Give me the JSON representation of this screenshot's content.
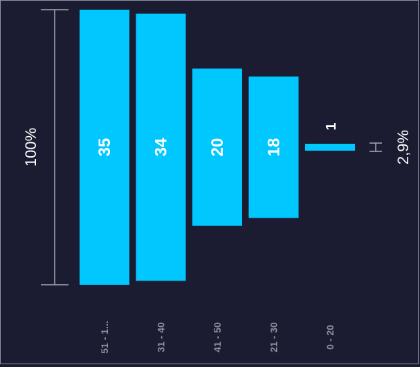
{
  "chart_data": {
    "type": "bar",
    "orientation": "horizontal-funnel",
    "title": "",
    "xlabel": "",
    "ylabel": "",
    "categories": [
      "51 - 1...",
      "31 - 40",
      "41 - 50",
      "21 - 30",
      "0 - 20"
    ],
    "values": [
      35,
      34,
      20,
      18,
      1
    ],
    "value_labels": [
      "35",
      "34",
      "20",
      "18",
      "1"
    ],
    "max_measure_label": "100%",
    "min_measure_label": "2,9%",
    "ylim": [
      0,
      35
    ],
    "grid": false,
    "legend": "none",
    "colors": {
      "bar": "#00c8ff",
      "background": "#1b1c31",
      "frame": "#8f93a8",
      "measure_line": "#a7aab8",
      "tick_text": "#8c8f9e",
      "value_text": "#ffffff"
    }
  }
}
